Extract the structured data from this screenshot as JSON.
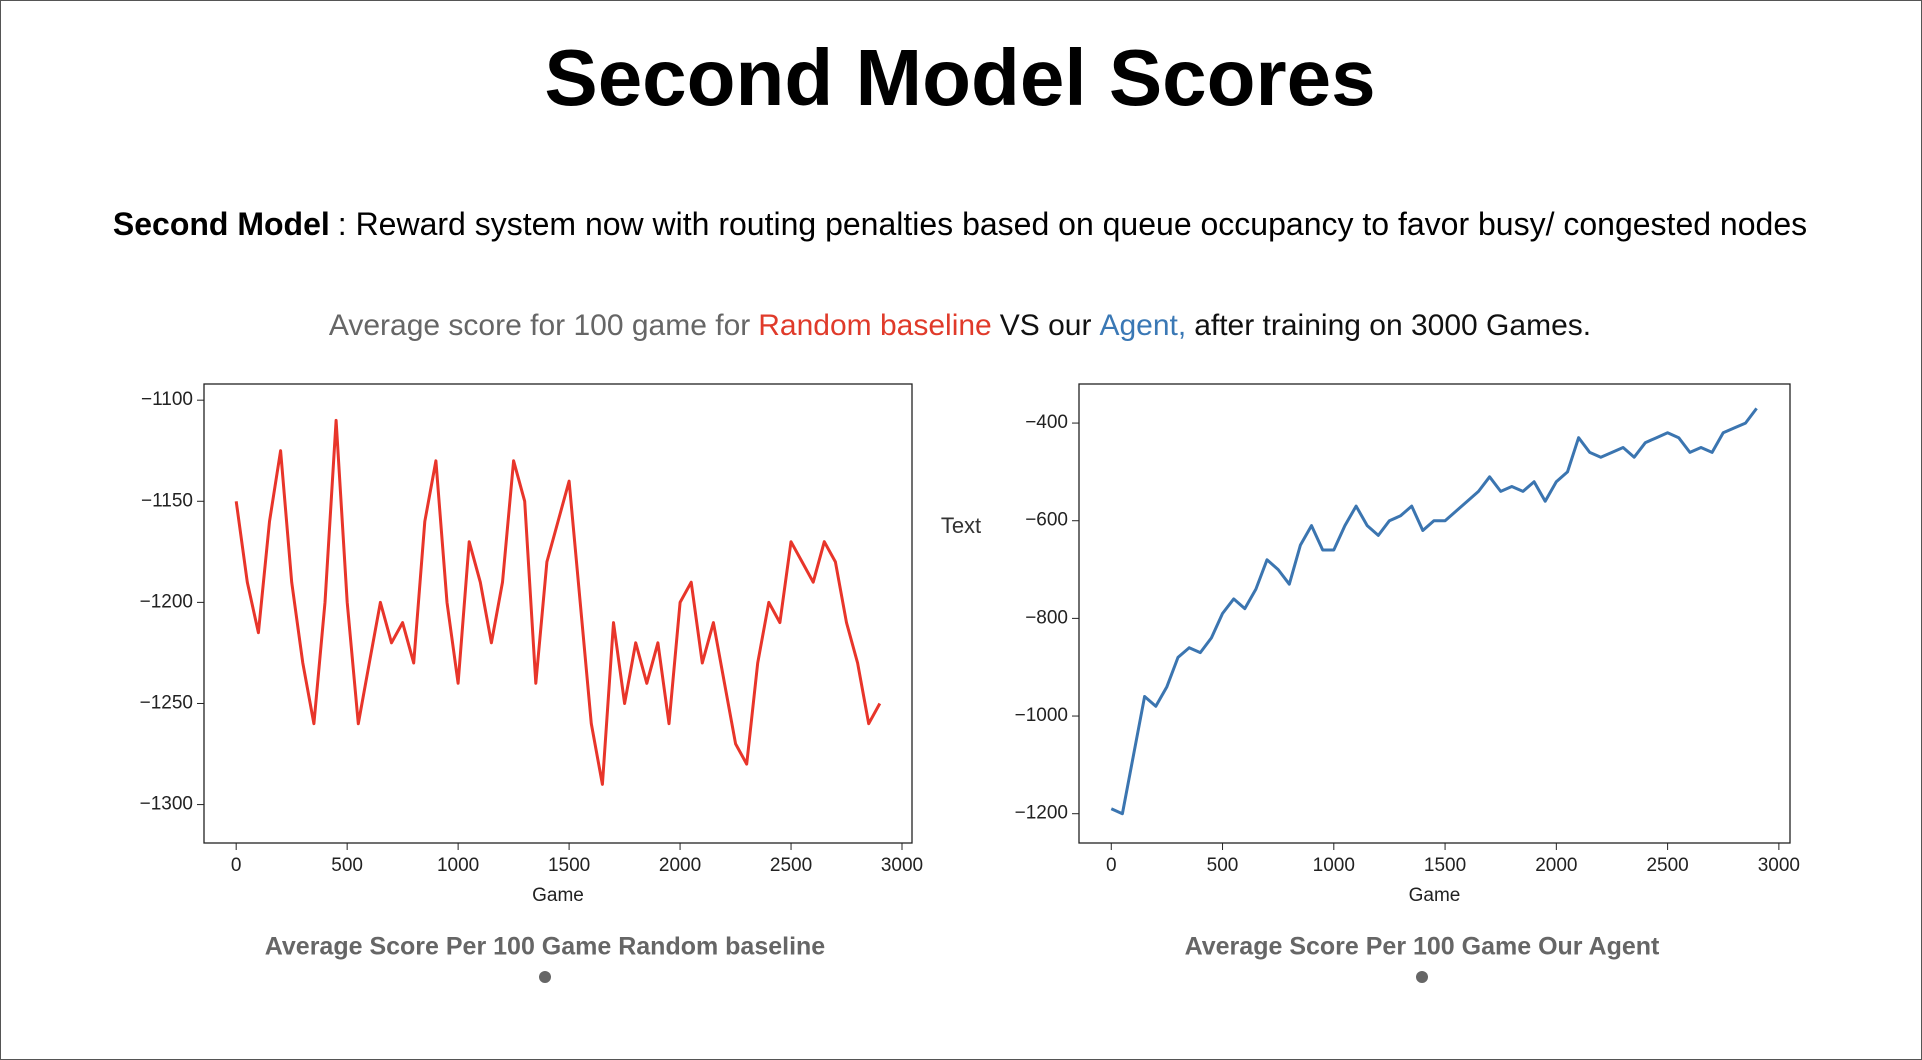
{
  "title": "Second Model Scores",
  "description_label": "Second Model",
  "description_text": ": Reward system now with routing penalties based on queue occupancy to favor busy/ congested nodes",
  "subtitle_parts": [
    {
      "text": "Average score for 100 game for",
      "color": "#666666"
    },
    {
      "text": "Random baseline",
      "color": "#e03a2a"
    },
    {
      "text": "VS our",
      "color": "#111111"
    },
    {
      "text": "Agent,",
      "color": "#3a78b5"
    },
    {
      "text": "after training on 3000 Games.",
      "color": "#111111"
    }
  ],
  "annotation": "Text",
  "chart_data": [
    {
      "type": "line",
      "caption": "Average Score Per 100 Game Random baseline",
      "xlabel": "Game",
      "color": "#e8352a",
      "x": [
        0,
        50,
        100,
        150,
        200,
        250,
        300,
        350,
        400,
        450,
        500,
        550,
        600,
        650,
        700,
        750,
        800,
        850,
        900,
        950,
        1000,
        1050,
        1100,
        1150,
        1200,
        1250,
        1300,
        1350,
        1400,
        1450,
        1500,
        1550,
        1600,
        1650,
        1700,
        1750,
        1800,
        1850,
        1900,
        1950,
        2000,
        2050,
        2100,
        2150,
        2200,
        2250,
        2300,
        2350,
        2400,
        2450,
        2500,
        2550,
        2600,
        2650,
        2700,
        2750,
        2800,
        2850,
        2900
      ],
      "values": [
        -1150,
        -1190,
        -1215,
        -1160,
        -1125,
        -1190,
        -1230,
        -1260,
        -1200,
        -1110,
        -1200,
        -1260,
        -1230,
        -1200,
        -1220,
        -1210,
        -1230,
        -1160,
        -1130,
        -1200,
        -1240,
        -1170,
        -1190,
        -1220,
        -1190,
        -1130,
        -1150,
        -1240,
        -1180,
        -1160,
        -1140,
        -1200,
        -1260,
        -1290,
        -1210,
        -1250,
        -1220,
        -1240,
        -1220,
        -1260,
        -1200,
        -1190,
        -1230,
        -1210,
        -1240,
        -1270,
        -1280,
        -1230,
        -1200,
        -1210,
        -1170,
        -1180,
        -1190,
        -1170,
        -1180,
        -1210,
        -1230,
        -1260,
        -1250
      ],
      "xlim": [
        -145,
        3045
      ],
      "ylim": [
        -1319,
        -1092
      ],
      "xticks": [
        0,
        500,
        1000,
        1500,
        2000,
        2500,
        3000
      ],
      "yticks": [
        {
          "value": -1300,
          "label": "−1300"
        },
        {
          "value": -1250,
          "label": "−1250"
        },
        {
          "value": -1200,
          "label": "−1200"
        },
        {
          "value": -1150,
          "label": "−1150"
        },
        {
          "value": -1100,
          "label": "−1100"
        }
      ]
    },
    {
      "type": "line",
      "caption": "Average Score Per 100 Game Our Agent",
      "xlabel": "Game",
      "color": "#3b75b0",
      "x": [
        0,
        50,
        100,
        150,
        200,
        250,
        300,
        350,
        400,
        450,
        500,
        550,
        600,
        650,
        700,
        750,
        800,
        850,
        900,
        950,
        1000,
        1050,
        1100,
        1150,
        1200,
        1250,
        1300,
        1350,
        1400,
        1450,
        1500,
        1550,
        1600,
        1650,
        1700,
        1750,
        1800,
        1850,
        1900,
        1950,
        2000,
        2050,
        2100,
        2150,
        2200,
        2250,
        2300,
        2350,
        2400,
        2450,
        2500,
        2550,
        2600,
        2650,
        2700,
        2750,
        2800,
        2850,
        2900
      ],
      "values": [
        -1190,
        -1200,
        -1080,
        -960,
        -980,
        -940,
        -880,
        -860,
        -870,
        -840,
        -790,
        -760,
        -780,
        -740,
        -680,
        -700,
        -730,
        -650,
        -610,
        -660,
        -660,
        -610,
        -570,
        -610,
        -630,
        -600,
        -590,
        -570,
        -620,
        -600,
        -600,
        -580,
        -560,
        -540,
        -510,
        -540,
        -530,
        -540,
        -520,
        -560,
        -520,
        -500,
        -430,
        -460,
        -470,
        -460,
        -450,
        -470,
        -440,
        -430,
        -420,
        -430,
        -460,
        -450,
        -460,
        -420,
        -410,
        -400,
        -370
      ],
      "xlim": [
        -145,
        3050
      ],
      "ylim": [
        -1260,
        -320
      ],
      "xticks": [
        0,
        500,
        1000,
        1500,
        2000,
        2500,
        3000
      ],
      "yticks": [
        {
          "value": -1200,
          "label": "−1200"
        },
        {
          "value": -1000,
          "label": "−1000"
        },
        {
          "value": -800,
          "label": "−800"
        },
        {
          "value": -600,
          "label": "−600"
        },
        {
          "value": -400,
          "label": "−400"
        }
      ]
    }
  ]
}
